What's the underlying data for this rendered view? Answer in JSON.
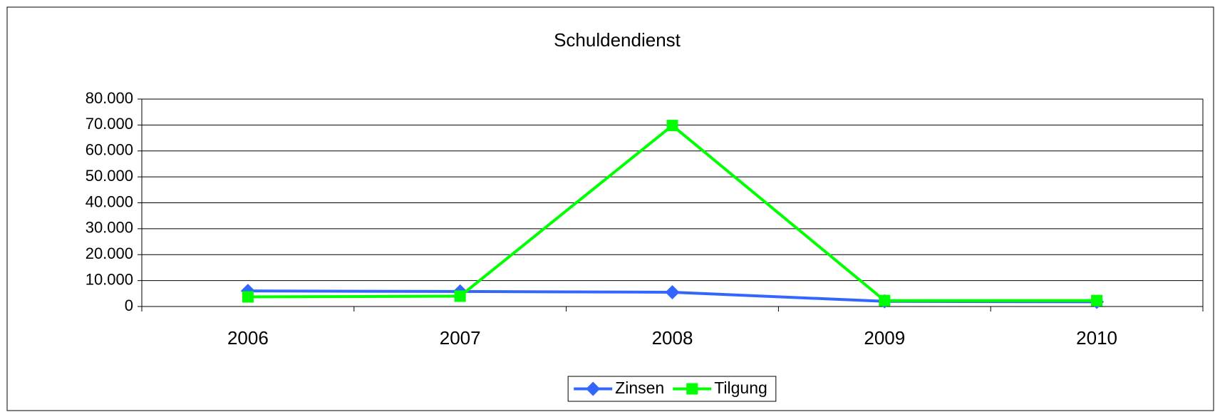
{
  "chart_data": {
    "type": "line",
    "title": "Schuldendienst",
    "categories": [
      "2006",
      "2007",
      "2008",
      "2009",
      "2010"
    ],
    "series": [
      {
        "name": "Zinsen",
        "color": "#3366ff",
        "marker": "diamond",
        "values": [
          6000,
          5800,
          5500,
          2000,
          1800
        ]
      },
      {
        "name": "Tilgung",
        "color": "#00ff00",
        "marker": "square",
        "values": [
          3700,
          4000,
          69800,
          2300,
          2300
        ]
      }
    ],
    "ylim": [
      0,
      80000
    ],
    "yticks": [
      0,
      {
        "value": 10000,
        "label": "10.000"
      },
      {
        "value": 20000,
        "label": "20.000"
      },
      {
        "value": 30000,
        "label": "30.000"
      },
      {
        "value": 40000,
        "label": "40.000"
      },
      {
        "value": 50000,
        "label": "50.000"
      },
      {
        "value": 60000,
        "label": "60.000"
      },
      {
        "value": 70000,
        "label": "70.000"
      },
      {
        "value": 80000,
        "label": "80.000"
      }
    ],
    "grid": true,
    "legend": "bottom"
  }
}
